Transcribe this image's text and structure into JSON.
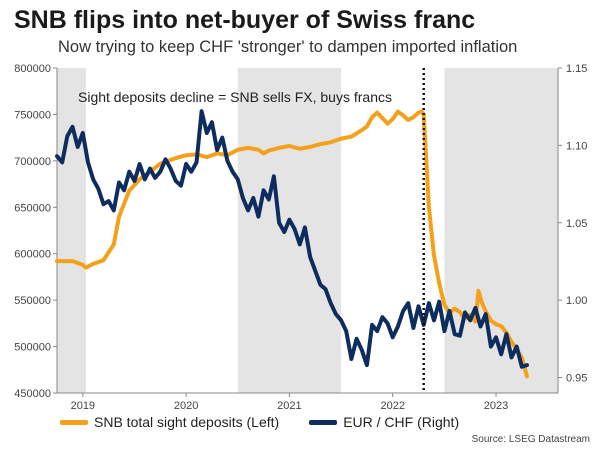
{
  "title": "SNB flips into net-buyer of Swiss franc",
  "subtitle": "Now trying to keep CHF 'stronger' to dampen imported inflation",
  "source": "Source: LSEG Datastream",
  "colors": {
    "deposits": "#f5a01a",
    "eurchf": "#0d2d5e",
    "shade": "#e4e4e4",
    "axis": "#888888"
  },
  "chart_data": {
    "type": "line",
    "title": "SNB flips into net-buyer of Swiss franc",
    "annotation": "Sight deposits decline = SNB sells FX, buys francs",
    "x_range": [
      2018.75,
      2023.6
    ],
    "x_ticks": [
      {
        "value": 2019.0,
        "label": "2019"
      },
      {
        "value": 2020.0,
        "label": "2020"
      },
      {
        "value": 2021.0,
        "label": "2021"
      },
      {
        "value": 2022.0,
        "label": "2022"
      },
      {
        "value": 2023.0,
        "label": "2023"
      }
    ],
    "left_axis": {
      "label": "SNB total sight deposits (Left)",
      "ylim": [
        450000,
        800000
      ],
      "ticks": [
        "450000",
        "500000",
        "550000",
        "600000",
        "650000",
        "700000",
        "750000",
        "800000"
      ]
    },
    "right_axis": {
      "label": "EUR / CHF (Right)",
      "ylim": [
        0.94,
        1.15
      ],
      "ticks": [
        "0.95",
        "1.00",
        "1.05",
        "1.10",
        "1.15"
      ]
    },
    "shaded_periods": [
      [
        2018.75,
        2019.03
      ],
      [
        2020.5,
        2021.5
      ],
      [
        2022.5,
        2023.6
      ]
    ],
    "marker_line_x": 2022.3,
    "series": [
      {
        "name": "SNB total sight deposits (Left)",
        "axis": "left",
        "x": [
          2018.75,
          2018.9,
          2019.0,
          2019.03,
          2019.1,
          2019.2,
          2019.3,
          2019.35,
          2019.45,
          2019.55,
          2019.65,
          2019.75,
          2019.9,
          2020.0,
          2020.1,
          2020.2,
          2020.3,
          2020.4,
          2020.5,
          2020.6,
          2020.7,
          2020.75,
          2020.8,
          2020.9,
          2021.0,
          2021.1,
          2021.2,
          2021.3,
          2021.4,
          2021.5,
          2021.6,
          2021.7,
          2021.75,
          2021.8,
          2021.85,
          2021.9,
          2021.95,
          2022.0,
          2022.05,
          2022.1,
          2022.15,
          2022.2,
          2022.25,
          2022.28,
          2022.3,
          2022.32,
          2022.35,
          2022.4,
          2022.45,
          2022.5,
          2022.55,
          2022.6,
          2022.65,
          2022.7,
          2022.75,
          2022.8,
          2022.83,
          2022.86,
          2022.9,
          2022.95,
          2023.0,
          2023.05,
          2023.1,
          2023.15,
          2023.2,
          2023.25,
          2023.3
        ],
        "values": [
          592000,
          592000,
          588000,
          585000,
          589000,
          593000,
          610000,
          640000,
          668000,
          680000,
          688000,
          697000,
          703000,
          706000,
          707000,
          704000,
          708000,
          706000,
          712000,
          714000,
          712000,
          708000,
          711000,
          714000,
          716000,
          713000,
          715000,
          718000,
          720000,
          724000,
          726000,
          733000,
          737000,
          747000,
          752000,
          746000,
          740000,
          745000,
          753000,
          749000,
          744000,
          747000,
          752000,
          753000,
          750000,
          710000,
          650000,
          598000,
          568000,
          545000,
          536000,
          541000,
          537000,
          530000,
          534000,
          527000,
          560000,
          548000,
          538000,
          528000,
          524000,
          522000,
          515000,
          505000,
          497000,
          488000,
          468000
        ]
      },
      {
        "name": "EUR / CHF (Right)",
        "axis": "right",
        "x": [
          2018.75,
          2018.8,
          2018.85,
          2018.9,
          2018.95,
          2019.0,
          2019.05,
          2019.1,
          2019.15,
          2019.2,
          2019.25,
          2019.3,
          2019.35,
          2019.4,
          2019.45,
          2019.5,
          2019.55,
          2019.6,
          2019.65,
          2019.7,
          2019.75,
          2019.8,
          2019.85,
          2019.9,
          2019.95,
          2020.0,
          2020.05,
          2020.1,
          2020.15,
          2020.2,
          2020.25,
          2020.3,
          2020.35,
          2020.4,
          2020.45,
          2020.5,
          2020.55,
          2020.6,
          2020.65,
          2020.7,
          2020.75,
          2020.8,
          2020.85,
          2020.9,
          2020.95,
          2021.0,
          2021.05,
          2021.1,
          2021.15,
          2021.2,
          2021.25,
          2021.3,
          2021.35,
          2021.4,
          2021.45,
          2021.5,
          2021.55,
          2021.6,
          2021.65,
          2021.7,
          2021.75,
          2021.8,
          2021.85,
          2021.9,
          2021.95,
          2022.0,
          2022.05,
          2022.1,
          2022.15,
          2022.2,
          2022.25,
          2022.3,
          2022.35,
          2022.4,
          2022.45,
          2022.5,
          2022.55,
          2022.6,
          2022.65,
          2022.7,
          2022.75,
          2022.8,
          2022.85,
          2022.9,
          2022.95,
          2023.0,
          2023.05,
          2023.1,
          2023.15,
          2023.2,
          2023.25,
          2023.3
        ],
        "values": [
          1.093,
          1.089,
          1.106,
          1.112,
          1.099,
          1.108,
          1.089,
          1.078,
          1.072,
          1.062,
          1.064,
          1.058,
          1.076,
          1.071,
          1.083,
          1.077,
          1.088,
          1.078,
          1.085,
          1.079,
          1.083,
          1.091,
          1.085,
          1.077,
          1.074,
          1.088,
          1.083,
          1.089,
          1.122,
          1.108,
          1.115,
          1.097,
          1.105,
          1.09,
          1.083,
          1.078,
          1.066,
          1.058,
          1.066,
          1.054,
          1.071,
          1.065,
          1.08,
          1.05,
          1.044,
          1.052,
          1.046,
          1.036,
          1.047,
          1.028,
          1.019,
          1.01,
          1.007,
          0.998,
          0.991,
          0.987,
          0.98,
          0.962,
          0.975,
          0.968,
          0.958,
          0.984,
          0.98,
          0.989,
          0.985,
          0.976,
          0.983,
          0.993,
          0.998,
          0.982,
          0.996,
          0.984,
          0.998,
          0.987,
          0.999,
          0.98,
          0.993,
          0.978,
          0.977,
          0.992,
          0.987,
          0.995,
          0.983,
          0.991,
          0.97,
          0.976,
          0.965,
          0.978,
          0.963,
          0.97,
          0.957,
          0.958
        ]
      }
    ]
  }
}
